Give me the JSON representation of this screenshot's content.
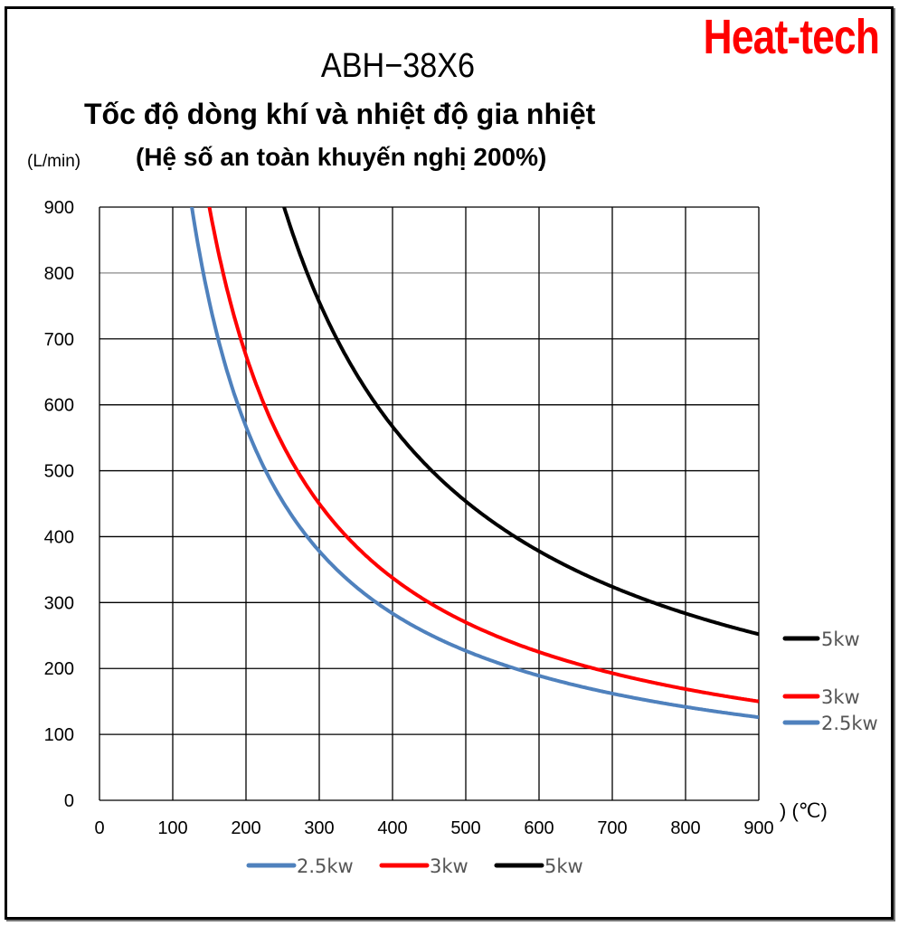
{
  "brand": "Heat-tech",
  "title": "ABH−38X6",
  "subtitle": "Tốc độ dòng khí và nhiệt độ gia nhiệt",
  "subtitle2": "(Hệ số an toàn khuyến nghị 200%)",
  "y_unit": "(L/min)",
  "x_unit": ") (℃)",
  "colors": {
    "kw2_5": "#4f81bd",
    "kw3": "#ff0000",
    "kw5": "#000000"
  },
  "chart_data": {
    "type": "line",
    "title": "ABH−38X6 — Tốc độ dòng khí và nhiệt độ gia nhiệt (Hệ số an toàn khuyến nghị 200%)",
    "xlabel": "(℃)",
    "ylabel": "(L/min)",
    "xlim": [
      0,
      900
    ],
    "ylim": [
      0,
      900
    ],
    "xticks": [
      0,
      100,
      200,
      300,
      400,
      500,
      600,
      700,
      800,
      900
    ],
    "yticks": [
      0,
      100,
      200,
      300,
      400,
      500,
      600,
      700,
      800,
      900
    ],
    "grid": true,
    "legend_position": "bottom and right",
    "x": [
      125,
      150,
      200,
      250,
      300,
      400,
      500,
      600,
      700,
      800,
      900
    ],
    "series": [
      {
        "name": "2.5kw",
        "color": "#4f81bd",
        "values": [
          900,
          752,
          565,
          452,
          377,
          283,
          226,
          188,
          161,
          141,
          126
        ]
      },
      {
        "name": "3kw",
        "color": "#ff0000",
        "values": [
          null,
          900,
          675,
          540,
          450,
          338,
          270,
          225,
          193,
          169,
          150
        ]
      },
      {
        "name": "5kw",
        "color": "#000000",
        "values": [
          null,
          null,
          null,
          900,
          756,
          567,
          454,
          378,
          324,
          284,
          252
        ]
      }
    ]
  },
  "legend_bottom": [
    {
      "label": "2.5kw",
      "color": "#4f81bd"
    },
    {
      "label": "3kw",
      "color": "#ff0000"
    },
    {
      "label": "5kw",
      "color": "#000000"
    }
  ],
  "legend_right": [
    {
      "label": "5kw",
      "color": "#000000"
    },
    {
      "label": "3kw",
      "color": "#ff0000"
    },
    {
      "label": "2.5kw",
      "color": "#4f81bd"
    }
  ]
}
